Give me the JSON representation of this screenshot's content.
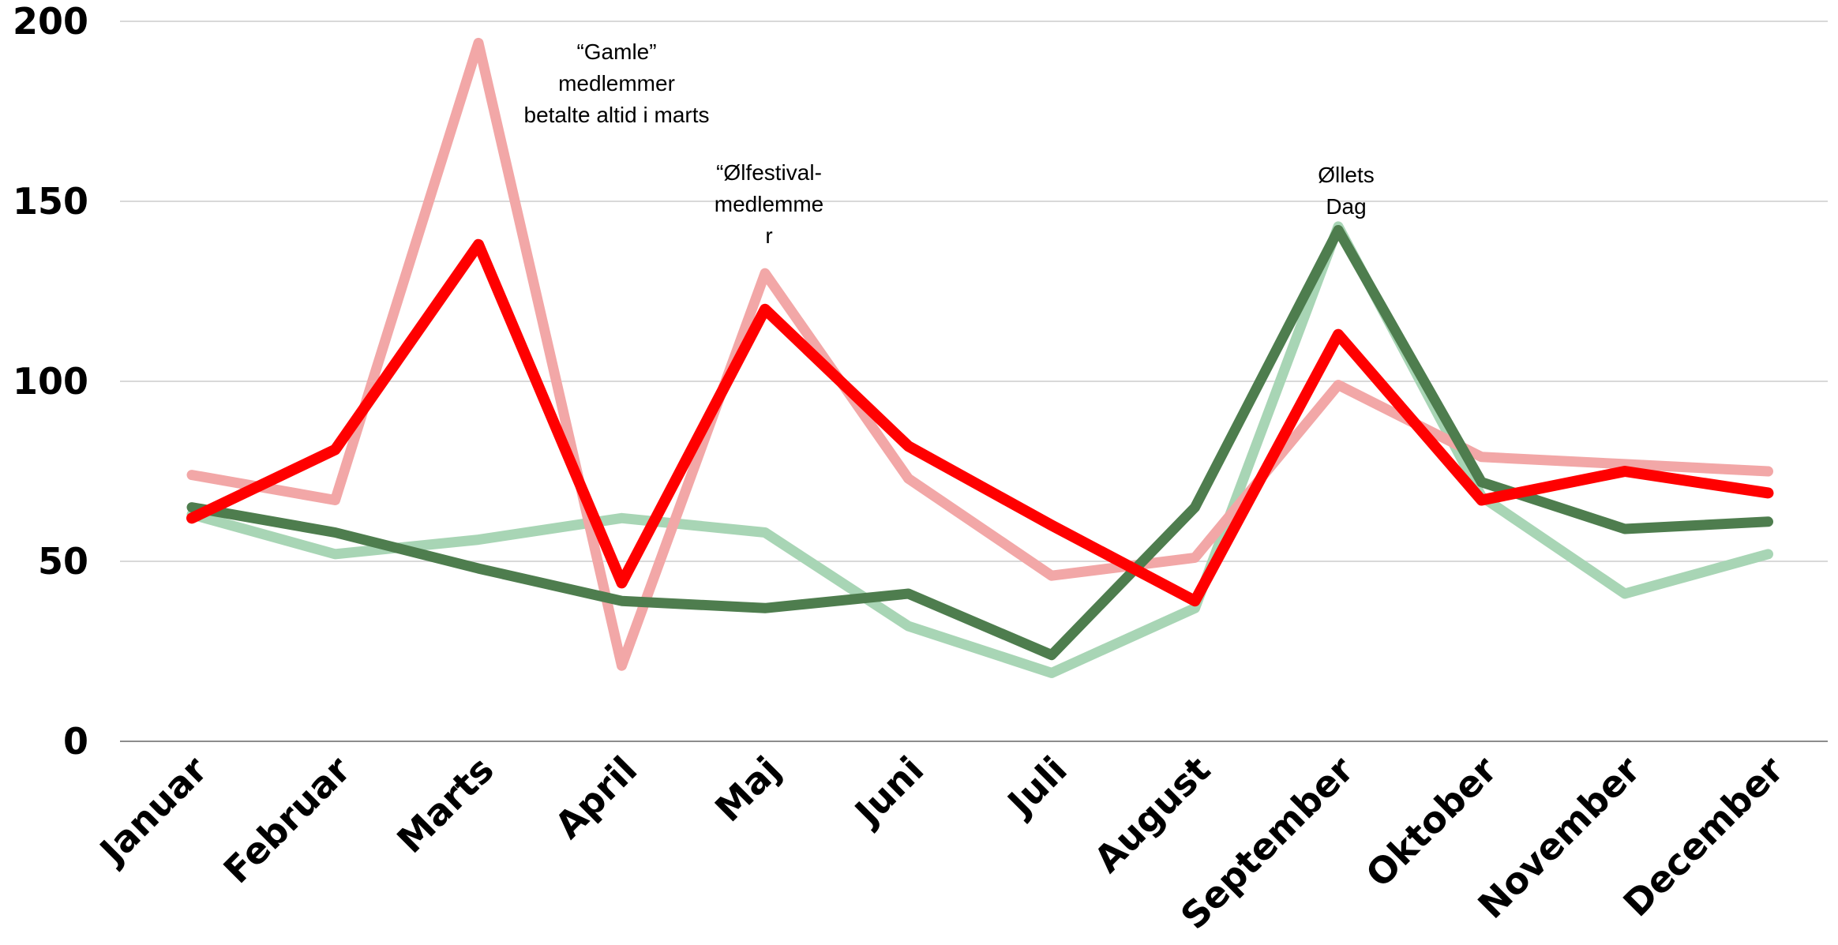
{
  "chart_data": {
    "type": "line",
    "categories": [
      "Januar",
      "Februar",
      "Marts",
      "April",
      "Maj",
      "Juni",
      "Juli",
      "August",
      "September",
      "Oktober",
      "November",
      "December"
    ],
    "ylim": [
      0,
      200
    ],
    "yticks": [
      0,
      50,
      100,
      150,
      200
    ],
    "ytick_labels": [
      "0",
      "50",
      "100",
      "150",
      "200"
    ],
    "grid": true,
    "legend": "none",
    "series": [
      {
        "color": "#a8d5b5",
        "width": 13,
        "values": [
          63,
          52,
          56,
          62,
          58,
          32,
          19,
          37,
          143,
          68,
          41,
          52
        ]
      },
      {
        "color": "#f2a7a7",
        "width": 13,
        "values": [
          74,
          67,
          194,
          21,
          130,
          73,
          46,
          51,
          99,
          79,
          77,
          75
        ]
      },
      {
        "color": "#4e7d4e",
        "width": 13,
        "values": [
          65,
          58,
          48,
          39,
          37,
          41,
          24,
          65,
          142,
          72,
          59,
          61
        ]
      },
      {
        "color": "#ff0000",
        "width": 14,
        "values": [
          62,
          81,
          138,
          44,
          120,
          82,
          60,
          39,
          113,
          67,
          75,
          69
        ]
      }
    ],
    "annotations": [
      {
        "category": "Marts",
        "lines": [
          "“Gamle”",
          "medlemmer",
          "betalte altid i marts"
        ]
      },
      {
        "category": "Maj",
        "lines": [
          "“Ølfestival-",
          "medlemme",
          "r"
        ]
      },
      {
        "category": "September",
        "lines": [
          "Øllets",
          "Dag"
        ]
      }
    ]
  }
}
